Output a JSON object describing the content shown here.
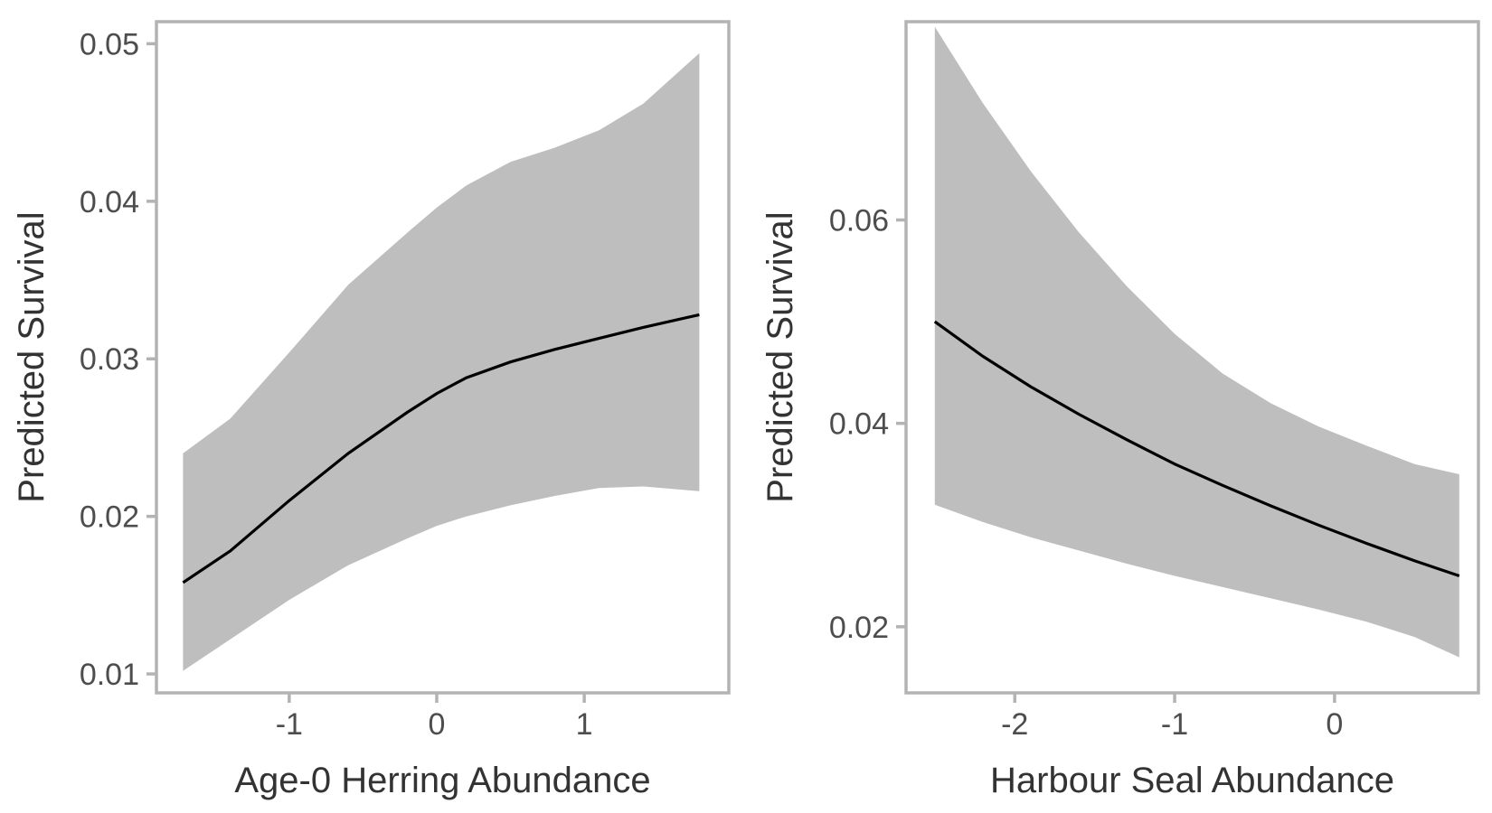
{
  "colors": {
    "ribbon": "#bebebe",
    "line": "#000000",
    "frame": "#b3b3b3",
    "text": "#4d4d4d"
  },
  "chart_data": [
    {
      "type": "line",
      "title": "",
      "xlabel": "Age-0 Herring Abundance",
      "ylabel": "Predicted Survival",
      "xlim": [
        -1.9,
        1.98
      ],
      "ylim": [
        0.0088,
        0.0514
      ],
      "x_ticks": [
        -1,
        0,
        1
      ],
      "x_tick_labels": [
        "-1",
        "0",
        "1"
      ],
      "y_ticks": [
        0.01,
        0.02,
        0.03,
        0.04,
        0.05
      ],
      "y_tick_labels": [
        "0.01",
        "0.02",
        "0.03",
        "0.04",
        "0.05"
      ],
      "grid": false,
      "legend": "none",
      "series": [
        {
          "x": [
            -1.72,
            -1.4,
            -1.0,
            -0.6,
            -0.2,
            0.0,
            0.2,
            0.5,
            0.8,
            1.1,
            1.4,
            1.78
          ],
          "fit": [
            0.0158,
            0.0178,
            0.021,
            0.024,
            0.0266,
            0.0278,
            0.0288,
            0.0298,
            0.0306,
            0.0313,
            0.032,
            0.0328
          ],
          "lower": [
            0.0102,
            0.0122,
            0.0147,
            0.0169,
            0.0186,
            0.0194,
            0.02,
            0.0207,
            0.0213,
            0.0218,
            0.0219,
            0.0216
          ],
          "upper": [
            0.024,
            0.0262,
            0.0304,
            0.0347,
            0.038,
            0.0396,
            0.041,
            0.0425,
            0.0434,
            0.0445,
            0.0462,
            0.0494
          ]
        }
      ]
    },
    {
      "type": "line",
      "title": "",
      "xlabel": "Harbour Seal Abundance",
      "ylabel": "Predicted Survival",
      "xlim": [
        -2.68,
        0.9
      ],
      "ylim": [
        0.0135,
        0.0795
      ],
      "x_ticks": [
        -2,
        -1,
        0
      ],
      "x_tick_labels": [
        "-2",
        "-1",
        "0"
      ],
      "y_ticks": [
        0.02,
        0.04,
        0.06
      ],
      "y_tick_labels": [
        "0.02",
        "0.04",
        "0.06"
      ],
      "grid": false,
      "legend": "none",
      "series": [
        {
          "x": [
            -2.5,
            -2.2,
            -1.9,
            -1.6,
            -1.3,
            -1.0,
            -0.7,
            -0.4,
            -0.1,
            0.2,
            0.5,
            0.78
          ],
          "fit": [
            0.05,
            0.0466,
            0.0436,
            0.0409,
            0.0384,
            0.036,
            0.0339,
            0.0319,
            0.03,
            0.0282,
            0.0265,
            0.025
          ],
          "lower": [
            0.032,
            0.0303,
            0.0288,
            0.0275,
            0.0262,
            0.025,
            0.0239,
            0.0228,
            0.0217,
            0.0205,
            0.019,
            0.017
          ],
          "upper": [
            0.079,
            0.0715,
            0.0648,
            0.0588,
            0.0535,
            0.0488,
            0.0449,
            0.042,
            0.0397,
            0.0378,
            0.036,
            0.035
          ]
        }
      ]
    }
  ]
}
